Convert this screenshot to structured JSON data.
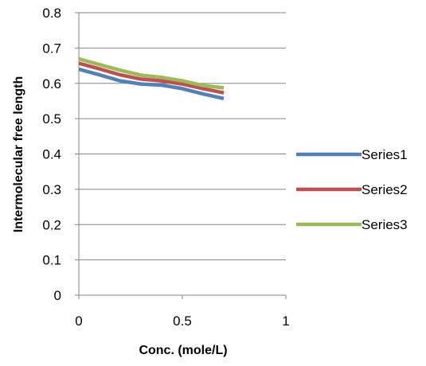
{
  "chart_data": {
    "type": "line",
    "xlabel": "Conc. (mole/L)",
    "ylabel": "Intermolecular free length",
    "xlim": [
      0,
      1
    ],
    "ylim": [
      0,
      0.8
    ],
    "xticks": [
      0,
      0.5,
      1
    ],
    "xtick_labels": [
      "0",
      "0.5",
      "1"
    ],
    "yticks": [
      0,
      0.1,
      0.2,
      0.3,
      0.4,
      0.5,
      0.6,
      0.7,
      0.8
    ],
    "ytick_labels": [
      "0",
      "0.1",
      "0.2",
      "0.3",
      "0.4",
      "0.5",
      "0.6",
      "0.7",
      "0.8"
    ],
    "grid": "horizontal",
    "legend_position": "right",
    "series": [
      {
        "name": "Series1",
        "color": "#4f81bd",
        "x": [
          0,
          0.1,
          0.2,
          0.3,
          0.4,
          0.5,
          0.6,
          0.7
        ],
        "y": [
          0.64,
          0.624,
          0.607,
          0.598,
          0.595,
          0.585,
          0.57,
          0.557
        ]
      },
      {
        "name": "Series2",
        "color": "#c0504d",
        "x": [
          0,
          0.1,
          0.2,
          0.3,
          0.4,
          0.5,
          0.6,
          0.7
        ],
        "y": [
          0.657,
          0.641,
          0.624,
          0.612,
          0.607,
          0.598,
          0.585,
          0.573
        ]
      },
      {
        "name": "Series3",
        "color": "#9bbb59",
        "x": [
          0,
          0.1,
          0.2,
          0.3,
          0.4,
          0.5,
          0.6,
          0.7
        ],
        "y": [
          0.669,
          0.653,
          0.637,
          0.623,
          0.617,
          0.607,
          0.594,
          0.587
        ]
      }
    ]
  }
}
